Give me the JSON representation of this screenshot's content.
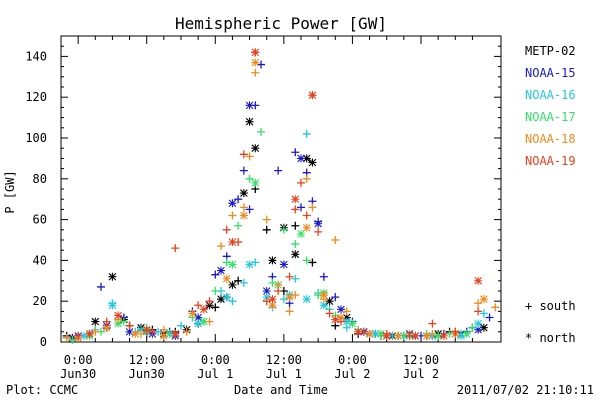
{
  "chart_data": {
    "type": "scatter",
    "title": "Hemispheric Power [GW]",
    "ylabel": "P [GW]",
    "xlabel": "Date and Time",
    "ylim": [
      0,
      150
    ],
    "xlim": [
      -3,
      74
    ],
    "y_ticks": [
      0,
      20,
      40,
      60,
      80,
      100,
      120,
      140
    ],
    "x_ticks": [
      {
        "x": 0,
        "label1": "0:00",
        "label2": "Jun30"
      },
      {
        "x": 12,
        "label1": "12:00",
        "label2": "Jun30"
      },
      {
        "x": 24,
        "label1": "0:00",
        "label2": "Jul 1"
      },
      {
        "x": 36,
        "label1": "12:00",
        "label2": "Jul 1"
      },
      {
        "x": 48,
        "label1": "0:00",
        "label2": "Jul 2"
      },
      {
        "x": 60,
        "label1": "12:00",
        "label2": "Jul 2"
      }
    ],
    "x_units": "hours from 0:00 Jun30",
    "grid": false,
    "legend_position": "right",
    "symbols": {
      "south": "+",
      "north": "*"
    },
    "series": [
      {
        "name": "METP-02",
        "color": "#000000",
        "south": [
          [
            -2,
            3
          ],
          [
            2,
            4
          ],
          [
            5,
            7
          ],
          [
            9,
            8
          ],
          [
            13,
            6
          ],
          [
            17,
            5
          ],
          [
            21,
            9
          ],
          [
            24,
            17
          ],
          [
            26,
            22
          ],
          [
            28,
            30
          ],
          [
            31,
            75
          ],
          [
            33,
            55
          ],
          [
            36,
            25
          ],
          [
            38,
            57
          ],
          [
            41,
            39
          ],
          [
            45,
            8
          ],
          [
            49,
            4
          ],
          [
            53,
            3
          ],
          [
            57,
            3
          ],
          [
            61,
            3
          ],
          [
            65,
            5
          ],
          [
            69,
            7
          ]
        ],
        "north": [
          [
            -1,
            2
          ],
          [
            3,
            10
          ],
          [
            6,
            32
          ],
          [
            8,
            11
          ],
          [
            11,
            7
          ],
          [
            15,
            4
          ],
          [
            19,
            6
          ],
          [
            23,
            18
          ],
          [
            25,
            21
          ],
          [
            27,
            28
          ],
          [
            29,
            73
          ],
          [
            30,
            108
          ],
          [
            31,
            95
          ],
          [
            34,
            40
          ],
          [
            36,
            56
          ],
          [
            38,
            43
          ],
          [
            40,
            90
          ],
          [
            41,
            88
          ],
          [
            44,
            20
          ],
          [
            47,
            12
          ],
          [
            51,
            4
          ],
          [
            55,
            3
          ],
          [
            59,
            3
          ],
          [
            63,
            4
          ],
          [
            67,
            4
          ],
          [
            71,
            7
          ]
        ]
      },
      {
        "name": "NOAA-15",
        "color": "#1a1acc",
        "south": [
          [
            -1,
            2
          ],
          [
            4,
            27
          ],
          [
            8,
            12
          ],
          [
            12,
            4
          ],
          [
            16,
            5
          ],
          [
            20,
            15
          ],
          [
            24,
            33
          ],
          [
            26,
            42
          ],
          [
            28,
            70
          ],
          [
            29,
            84
          ],
          [
            30,
            65
          ],
          [
            31,
            116
          ],
          [
            32,
            136
          ],
          [
            34,
            32
          ],
          [
            35,
            84
          ],
          [
            37,
            19
          ],
          [
            38,
            93
          ],
          [
            39,
            66
          ],
          [
            40,
            83
          ],
          [
            41,
            69
          ],
          [
            42,
            59
          ],
          [
            43,
            32
          ],
          [
            45,
            22
          ],
          [
            48,
            10
          ],
          [
            52,
            4
          ],
          [
            56,
            3
          ],
          [
            60,
            3
          ],
          [
            64,
            4
          ],
          [
            68,
            5
          ],
          [
            72,
            12
          ]
        ],
        "north": [
          [
            0,
            3
          ],
          [
            5,
            8
          ],
          [
            9,
            5
          ],
          [
            13,
            4
          ],
          [
            17,
            3
          ],
          [
            21,
            12
          ],
          [
            25,
            35
          ],
          [
            27,
            68
          ],
          [
            30,
            116
          ],
          [
            33,
            25
          ],
          [
            36,
            38
          ],
          [
            39,
            90
          ],
          [
            42,
            58
          ],
          [
            46,
            16
          ],
          [
            50,
            5
          ],
          [
            54,
            3
          ],
          [
            58,
            4
          ],
          [
            62,
            3
          ],
          [
            66,
            4
          ],
          [
            70,
            6
          ]
        ]
      },
      {
        "name": "NOAA-16",
        "color": "#22c8dd",
        "south": [
          [
            -2,
            2
          ],
          [
            3,
            6
          ],
          [
            6,
            19
          ],
          [
            10,
            5
          ],
          [
            14,
            5
          ],
          [
            18,
            8
          ],
          [
            22,
            10
          ],
          [
            25,
            25
          ],
          [
            27,
            20
          ],
          [
            29,
            29
          ],
          [
            31,
            39
          ],
          [
            34,
            17
          ],
          [
            36,
            21
          ],
          [
            38,
            31
          ],
          [
            40,
            102
          ],
          [
            42,
            24
          ],
          [
            44,
            16
          ],
          [
            47,
            7
          ],
          [
            51,
            4
          ],
          [
            55,
            3
          ],
          [
            59,
            3
          ],
          [
            63,
            3
          ],
          [
            67,
            4
          ],
          [
            71,
            14
          ]
        ],
        "north": [
          [
            1,
            3
          ],
          [
            6,
            18
          ],
          [
            11,
            6
          ],
          [
            16,
            4
          ],
          [
            21,
            9
          ],
          [
            26,
            22
          ],
          [
            30,
            38
          ],
          [
            33,
            22
          ],
          [
            37,
            23
          ],
          [
            40,
            21
          ],
          [
            43,
            18
          ],
          [
            47,
            10
          ],
          [
            52,
            4
          ],
          [
            57,
            3
          ],
          [
            62,
            3
          ],
          [
            67,
            3
          ],
          [
            70,
            9
          ]
        ]
      },
      {
        "name": "NOAA-17",
        "color": "#33e066",
        "south": [
          [
            -1,
            1
          ],
          [
            4,
            5
          ],
          [
            8,
            10
          ],
          [
            12,
            7
          ],
          [
            16,
            4
          ],
          [
            20,
            12
          ],
          [
            24,
            25
          ],
          [
            26,
            39
          ],
          [
            28,
            57
          ],
          [
            30,
            80
          ],
          [
            32,
            103
          ],
          [
            34,
            29
          ],
          [
            36,
            55
          ],
          [
            38,
            48
          ],
          [
            40,
            40
          ],
          [
            42,
            23
          ],
          [
            45,
            13
          ],
          [
            49,
            6
          ],
          [
            53,
            3
          ],
          [
            57,
            3
          ],
          [
            61,
            4
          ],
          [
            65,
            4
          ],
          [
            69,
            7
          ]
        ],
        "north": [
          [
            2,
            3
          ],
          [
            7,
            9
          ],
          [
            12,
            5
          ],
          [
            17,
            4
          ],
          [
            22,
            10
          ],
          [
            27,
            38
          ],
          [
            31,
            78
          ],
          [
            35,
            28
          ],
          [
            39,
            53
          ],
          [
            43,
            24
          ],
          [
            48,
            9
          ],
          [
            53,
            4
          ],
          [
            58,
            3
          ],
          [
            63,
            3
          ],
          [
            68,
            4
          ]
        ]
      },
      {
        "name": "NOAA-18",
        "color": "#f08a1a",
        "south": [
          [
            -2,
            2
          ],
          [
            3,
            5
          ],
          [
            7,
            11
          ],
          [
            11,
            4
          ],
          [
            15,
            6
          ],
          [
            19,
            5
          ],
          [
            23,
            10
          ],
          [
            25,
            47
          ],
          [
            27,
            62
          ],
          [
            29,
            66
          ],
          [
            30,
            91
          ],
          [
            31,
            132
          ],
          [
            33,
            60
          ],
          [
            35,
            28
          ],
          [
            37,
            15
          ],
          [
            38,
            23
          ],
          [
            40,
            80
          ],
          [
            41,
            66
          ],
          [
            43,
            21
          ],
          [
            45,
            50
          ],
          [
            47,
            15
          ],
          [
            50,
            5
          ],
          [
            54,
            3
          ],
          [
            58,
            4
          ],
          [
            62,
            4
          ],
          [
            66,
            5
          ],
          [
            70,
            19
          ],
          [
            73,
            17
          ]
        ],
        "north": [
          [
            0,
            2
          ],
          [
            5,
            7
          ],
          [
            10,
            4
          ],
          [
            15,
            3
          ],
          [
            20,
            14
          ],
          [
            26,
            31
          ],
          [
            29,
            62
          ],
          [
            31,
            137
          ],
          [
            34,
            18
          ],
          [
            37,
            22
          ],
          [
            40,
            56
          ],
          [
            43,
            23
          ],
          [
            46,
            12
          ],
          [
            51,
            4
          ],
          [
            56,
            3
          ],
          [
            61,
            3
          ],
          [
            66,
            4
          ],
          [
            71,
            21
          ]
        ]
      },
      {
        "name": "NOAA-19",
        "color": "#e8401c",
        "south": [
          [
            0,
            3
          ],
          [
            5,
            10
          ],
          [
            9,
            8
          ],
          [
            13,
            5
          ],
          [
            17,
            46
          ],
          [
            21,
            18
          ],
          [
            23,
            20
          ],
          [
            26,
            55
          ],
          [
            28,
            49
          ],
          [
            29,
            92
          ],
          [
            31,
            142
          ],
          [
            33,
            20
          ],
          [
            35,
            25
          ],
          [
            37,
            32
          ],
          [
            38,
            65
          ],
          [
            39,
            78
          ],
          [
            40,
            62
          ],
          [
            41,
            121
          ],
          [
            42,
            54
          ],
          [
            44,
            14
          ],
          [
            46,
            10
          ],
          [
            50,
            5
          ],
          [
            54,
            4
          ],
          [
            58,
            3
          ],
          [
            62,
            9
          ],
          [
            66,
            5
          ],
          [
            70,
            15
          ]
        ],
        "north": [
          [
            2,
            4
          ],
          [
            7,
            13
          ],
          [
            12,
            6
          ],
          [
            17,
            4
          ],
          [
            22,
            16
          ],
          [
            27,
            49
          ],
          [
            31,
            142
          ],
          [
            34,
            21
          ],
          [
            38,
            70
          ],
          [
            41,
            121
          ],
          [
            45,
            11
          ],
          [
            49,
            5
          ],
          [
            54,
            3
          ],
          [
            59,
            3
          ],
          [
            64,
            3
          ],
          [
            70,
            30
          ]
        ]
      }
    ]
  },
  "legend_symbols": {
    "south": "+  south",
    "north": "*  north"
  },
  "footer": {
    "left": "Plot: CCMC",
    "right": "2011/07/02 21:10:11"
  }
}
